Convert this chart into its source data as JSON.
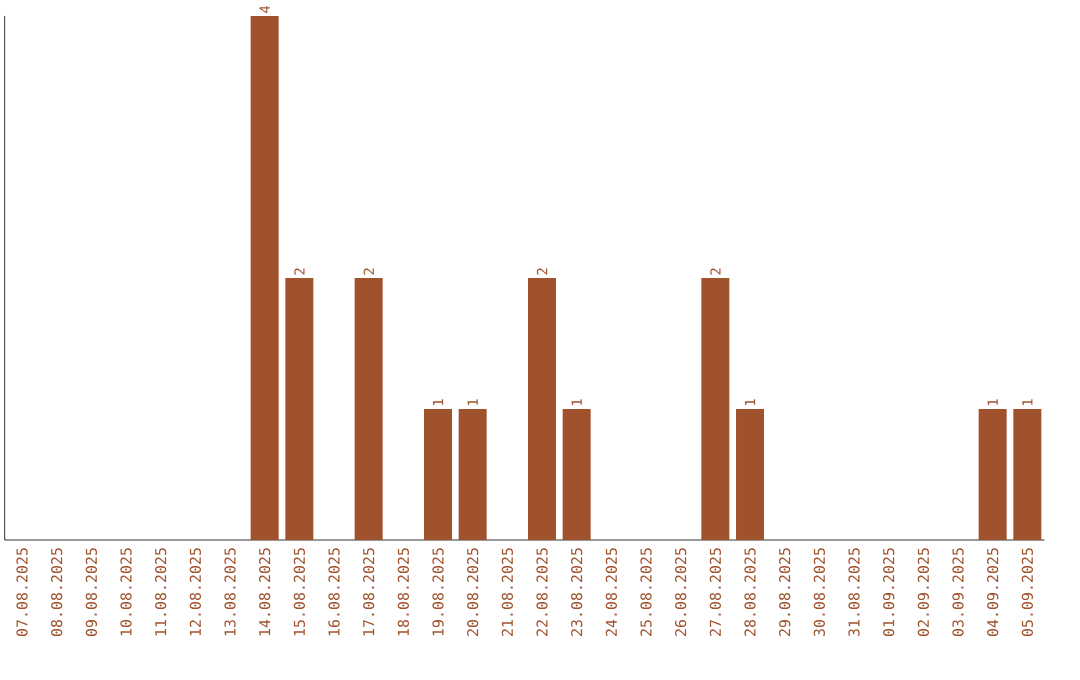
{
  "chart_data": {
    "type": "bar",
    "categories": [
      "07.08.2025",
      "08.08.2025",
      "09.08.2025",
      "10.08.2025",
      "11.08.2025",
      "12.08.2025",
      "13.08.2025",
      "14.08.2025",
      "15.08.2025",
      "16.08.2025",
      "17.08.2025",
      "18.08.2025",
      "19.08.2025",
      "20.08.2025",
      "21.08.2025",
      "22.08.2025",
      "23.08.2025",
      "24.08.2025",
      "25.08.2025",
      "26.08.2025",
      "27.08.2025",
      "28.08.2025",
      "29.08.2025",
      "30.08.2025",
      "31.08.2025",
      "01.09.2025",
      "02.09.2025",
      "03.09.2025",
      "04.09.2025",
      "05.09.2025"
    ],
    "values": [
      0,
      0,
      0,
      0,
      0,
      0,
      0,
      4,
      2,
      0,
      2,
      0,
      1,
      1,
      0,
      2,
      1,
      0,
      0,
      0,
      2,
      1,
      0,
      0,
      0,
      0,
      0,
      0,
      1,
      1
    ],
    "value_labels": [
      null,
      null,
      null,
      null,
      null,
      null,
      null,
      "4",
      "2",
      null,
      "2",
      null,
      "1",
      "1",
      null,
      "2",
      "1",
      null,
      null,
      null,
      "2",
      "1",
      null,
      null,
      null,
      null,
      null,
      null,
      "1",
      "1"
    ],
    "color": "#a0522d"
  }
}
